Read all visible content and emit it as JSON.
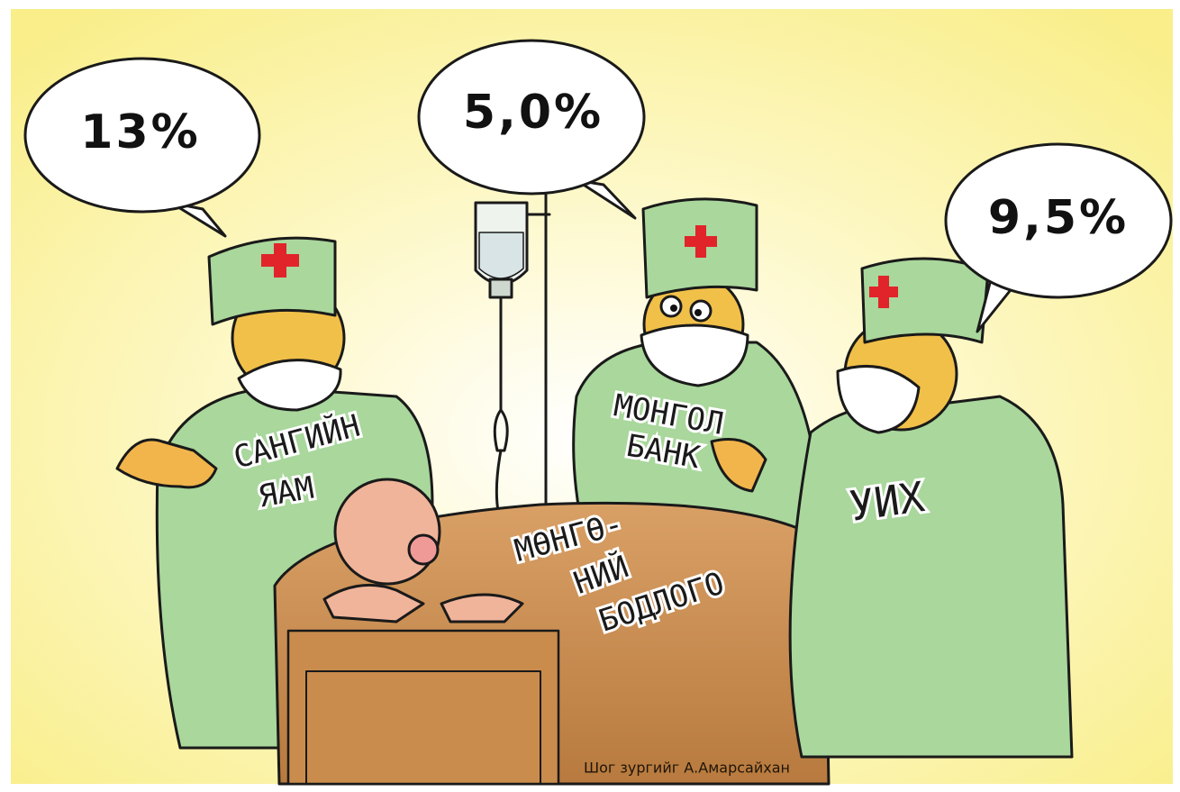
{
  "speech_bubbles": [
    "13%",
    "5,0%",
    "9,5%"
  ],
  "labels": {
    "finance_ministry": [
      "САНГИЙН",
      "ЯАМ"
    ],
    "mongol_bank": [
      "МОНГОЛ",
      "БАНК"
    ],
    "parliament": [
      "УИХ"
    ],
    "patient": [
      "МӨНГӨ-",
      "НИЙ",
      "БОДЛОГО"
    ]
  },
  "credit": "Шог зургийг А.Амарсайхан"
}
